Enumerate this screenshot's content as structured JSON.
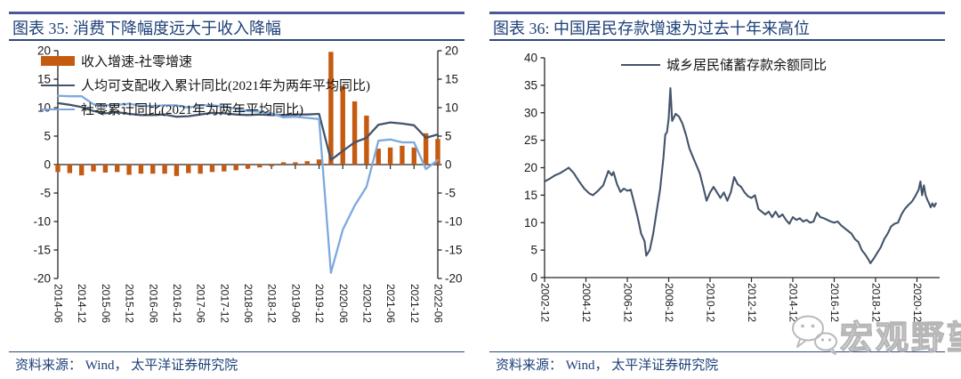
{
  "left_panel": {
    "title": "图表 35:  消费下降幅度远大于收入降幅",
    "source": "资料来源：  Wind，  太平洋证券研究院"
  },
  "right_panel": {
    "title": "图表 36:  中国居民存款增速为过去十年来高位",
    "source": "资料来源：  Wind，  太平洋证券研究院"
  },
  "watermark": {
    "text": "宏观野望",
    "icon": "wechat-icon"
  },
  "colors": {
    "bar_orange": "#c55a11",
    "income_line": "#44546a",
    "retail_line": "#7ca9dd",
    "deposit_line": "#44546a",
    "title_navy": "#1c4077",
    "rule_navy": "#2e4a7c",
    "top_rule": "#4c5796",
    "axis": "#262626",
    "watermark_gray": "#b3b3b3"
  },
  "chart_data": [
    {
      "type": "bar+line combo",
      "title": "消费下降幅度远大于收入降幅",
      "ylim": [
        -20,
        20
      ],
      "yticks": [
        -20,
        -15,
        -10,
        -5,
        0,
        5,
        10,
        15,
        20
      ],
      "y_axis_sides": "left and right, same scale",
      "grid": "off",
      "legend_position": "top-left inside plot",
      "categories": [
        "2014-06",
        "2014-09",
        "2014-12",
        "2015-03",
        "2015-06",
        "2015-09",
        "2015-12",
        "2016-03",
        "2016-06",
        "2016-09",
        "2016-12",
        "2017-03",
        "2017-06",
        "2017-09",
        "2017-12",
        "2018-03",
        "2018-06",
        "2018-09",
        "2018-12",
        "2019-03",
        "2019-06",
        "2019-09",
        "2019-12",
        "2020-03",
        "2020-06",
        "2020-09",
        "2020-12",
        "2021-03",
        "2021-06",
        "2021-09",
        "2021-12",
        "2022-03",
        "2022-06"
      ],
      "xtick_labels": [
        "2014-06",
        "2014-12",
        "2015-06",
        "2015-12",
        "2016-06",
        "2016-12",
        "2017-06",
        "2017-12",
        "2018-06",
        "2018-12",
        "2019-06",
        "2019-12",
        "2020-06",
        "2020-12",
        "2021-06",
        "2021-12",
        "2022-06"
      ],
      "series": [
        {
          "name": "收入增速-社零增速",
          "type": "bar",
          "color": "#c55a11",
          "values": [
            -1.3,
            -1.5,
            -1.9,
            -1.2,
            -1.4,
            -1.3,
            -1.8,
            -1.6,
            -1.6,
            -1.6,
            -2.0,
            -1.5,
            -1.6,
            -1.3,
            -1.2,
            -1.0,
            -0.7,
            -0.5,
            -0.3,
            0.4,
            0.4,
            0.6,
            0.9,
            19.8,
            13.8,
            11.1,
            8.6,
            2.8,
            3.0,
            3.3,
            3.0,
            5.5,
            4.5
          ]
        },
        {
          "name": "人均可支配收入累计同比(2021年为两年平均同比)",
          "type": "line",
          "color": "#44546a",
          "values": [
            10.8,
            10.5,
            10.1,
            9.4,
            9.0,
            9.2,
            8.9,
            8.7,
            8.7,
            8.8,
            8.4,
            8.5,
            8.8,
            9.1,
            9.0,
            8.8,
            8.7,
            8.8,
            8.7,
            8.7,
            8.8,
            8.8,
            8.9,
            0.8,
            2.4,
            3.9,
            4.7,
            7.0,
            7.4,
            7.2,
            6.9,
            4.7,
            5.3
          ]
        },
        {
          "name": "社零累计同比(2021年为两年平均同比)",
          "type": "line",
          "color": "#7ca9dd",
          "values": [
            12.1,
            12.0,
            12.0,
            10.6,
            10.4,
            10.5,
            10.7,
            10.3,
            10.3,
            10.4,
            10.4,
            10.0,
            10.4,
            10.4,
            10.2,
            9.8,
            9.4,
            9.3,
            9.0,
            8.3,
            8.4,
            8.2,
            8.0,
            -19.0,
            -11.4,
            -7.2,
            -3.9,
            4.2,
            4.4,
            3.9,
            3.9,
            -0.8,
            0.8
          ]
        }
      ]
    },
    {
      "type": "line",
      "title": "中国居民存款增速为过去十年来高位",
      "ylim": [
        0,
        40
      ],
      "yticks": [
        0,
        5,
        10,
        15,
        20,
        25,
        30,
        35,
        40
      ],
      "grid": "off",
      "legend_position": "top-center inside plot",
      "xtick_labels": [
        "2002-12",
        "2004-12",
        "2006-12",
        "2008-12",
        "2010-12",
        "2012-12",
        "2014-12",
        "2016-12",
        "2018-12",
        "2020-12"
      ],
      "series": [
        {
          "name": "城乡居民储蓄存款余额同比",
          "color": "#44546a",
          "points": [
            [
              "2002-12",
              17.5
            ],
            [
              "2003-03",
              18.0
            ],
            [
              "2003-06",
              18.6
            ],
            [
              "2003-09",
              19.0
            ],
            [
              "2003-12",
              19.6
            ],
            [
              "2004-02",
              20.0
            ],
            [
              "2004-05",
              19.0
            ],
            [
              "2004-08",
              17.5
            ],
            [
              "2004-11",
              16.2
            ],
            [
              "2005-02",
              15.3
            ],
            [
              "2005-04",
              15.0
            ],
            [
              "2005-07",
              15.8
            ],
            [
              "2005-10",
              16.8
            ],
            [
              "2006-01",
              19.4
            ],
            [
              "2006-03",
              18.6
            ],
            [
              "2006-04",
              19.2
            ],
            [
              "2006-06",
              17.0
            ],
            [
              "2006-08",
              15.6
            ],
            [
              "2006-10",
              16.2
            ],
            [
              "2006-12",
              15.8
            ],
            [
              "2007-02",
              16.0
            ],
            [
              "2007-04",
              13.5
            ],
            [
              "2007-06",
              11.0
            ],
            [
              "2007-08",
              8.0
            ],
            [
              "2007-10",
              6.6
            ],
            [
              "2007-11",
              4.0
            ],
            [
              "2008-01",
              5.0
            ],
            [
              "2008-03",
              8.0
            ],
            [
              "2008-05",
              12.0
            ],
            [
              "2008-07",
              16.0
            ],
            [
              "2008-09",
              22.0
            ],
            [
              "2008-10",
              26.0
            ],
            [
              "2008-11",
              26.5
            ],
            [
              "2008-12",
              29.0
            ],
            [
              "2009-01",
              34.5
            ],
            [
              "2009-02",
              28.5
            ],
            [
              "2009-04",
              29.8
            ],
            [
              "2009-06",
              29.3
            ],
            [
              "2009-08",
              28.0
            ],
            [
              "2009-10",
              26.0
            ],
            [
              "2009-12",
              23.5
            ],
            [
              "2010-02",
              22.0
            ],
            [
              "2010-04",
              20.5
            ],
            [
              "2010-06",
              19.0
            ],
            [
              "2010-08",
              16.5
            ],
            [
              "2010-10",
              14.0
            ],
            [
              "2010-12",
              15.5
            ],
            [
              "2011-02",
              16.5
            ],
            [
              "2011-04",
              15.5
            ],
            [
              "2011-06",
              14.5
            ],
            [
              "2011-08",
              15.5
            ],
            [
              "2011-10",
              14.0
            ],
            [
              "2011-12",
              15.5
            ],
            [
              "2012-02",
              18.3
            ],
            [
              "2012-04",
              17.0
            ],
            [
              "2012-06",
              16.5
            ],
            [
              "2012-08",
              15.5
            ],
            [
              "2012-10",
              14.8
            ],
            [
              "2012-12",
              14.5
            ],
            [
              "2013-02",
              15.0
            ],
            [
              "2013-04",
              12.5
            ],
            [
              "2013-06",
              12.0
            ],
            [
              "2013-08",
              11.5
            ],
            [
              "2013-10",
              12.0
            ],
            [
              "2013-12",
              11.0
            ],
            [
              "2014-02",
              12.0
            ],
            [
              "2014-04",
              11.0
            ],
            [
              "2014-06",
              11.5
            ],
            [
              "2014-08",
              10.5
            ],
            [
              "2014-10",
              9.8
            ],
            [
              "2014-12",
              11.0
            ],
            [
              "2015-02",
              10.5
            ],
            [
              "2015-04",
              10.8
            ],
            [
              "2015-06",
              10.2
            ],
            [
              "2015-08",
              10.5
            ],
            [
              "2015-10",
              10.0
            ],
            [
              "2015-12",
              10.2
            ],
            [
              "2016-02",
              11.8
            ],
            [
              "2016-04",
              11.0
            ],
            [
              "2016-06",
              10.8
            ],
            [
              "2016-08",
              10.5
            ],
            [
              "2016-10",
              10.2
            ],
            [
              "2016-12",
              10.0
            ],
            [
              "2017-02",
              10.2
            ],
            [
              "2017-04",
              9.5
            ],
            [
              "2017-06",
              9.0
            ],
            [
              "2017-08",
              8.5
            ],
            [
              "2017-10",
              8.0
            ],
            [
              "2017-12",
              7.0
            ],
            [
              "2018-02",
              6.5
            ],
            [
              "2018-04",
              5.0
            ],
            [
              "2018-06",
              4.2
            ],
            [
              "2018-08",
              3.2
            ],
            [
              "2018-09",
              2.6
            ],
            [
              "2018-11",
              3.5
            ],
            [
              "2019-01",
              4.5
            ],
            [
              "2019-03",
              5.5
            ],
            [
              "2019-05",
              7.0
            ],
            [
              "2019-07",
              8.0
            ],
            [
              "2019-09",
              9.3
            ],
            [
              "2019-11",
              9.8
            ],
            [
              "2020-01",
              10.0
            ],
            [
              "2020-03",
              11.5
            ],
            [
              "2020-05",
              12.5
            ],
            [
              "2020-07",
              13.2
            ],
            [
              "2020-09",
              13.8
            ],
            [
              "2020-11",
              14.8
            ],
            [
              "2021-01",
              16.0
            ],
            [
              "2021-02",
              17.5
            ],
            [
              "2021-03",
              15.0
            ],
            [
              "2021-04",
              16.8
            ],
            [
              "2021-05",
              15.0
            ],
            [
              "2021-06",
              14.2
            ],
            [
              "2021-07",
              13.5
            ],
            [
              "2021-08",
              12.8
            ],
            [
              "2021-09",
              13.5
            ],
            [
              "2021-10",
              12.9
            ],
            [
              "2021-11",
              13.5
            ]
          ]
        }
      ]
    }
  ]
}
